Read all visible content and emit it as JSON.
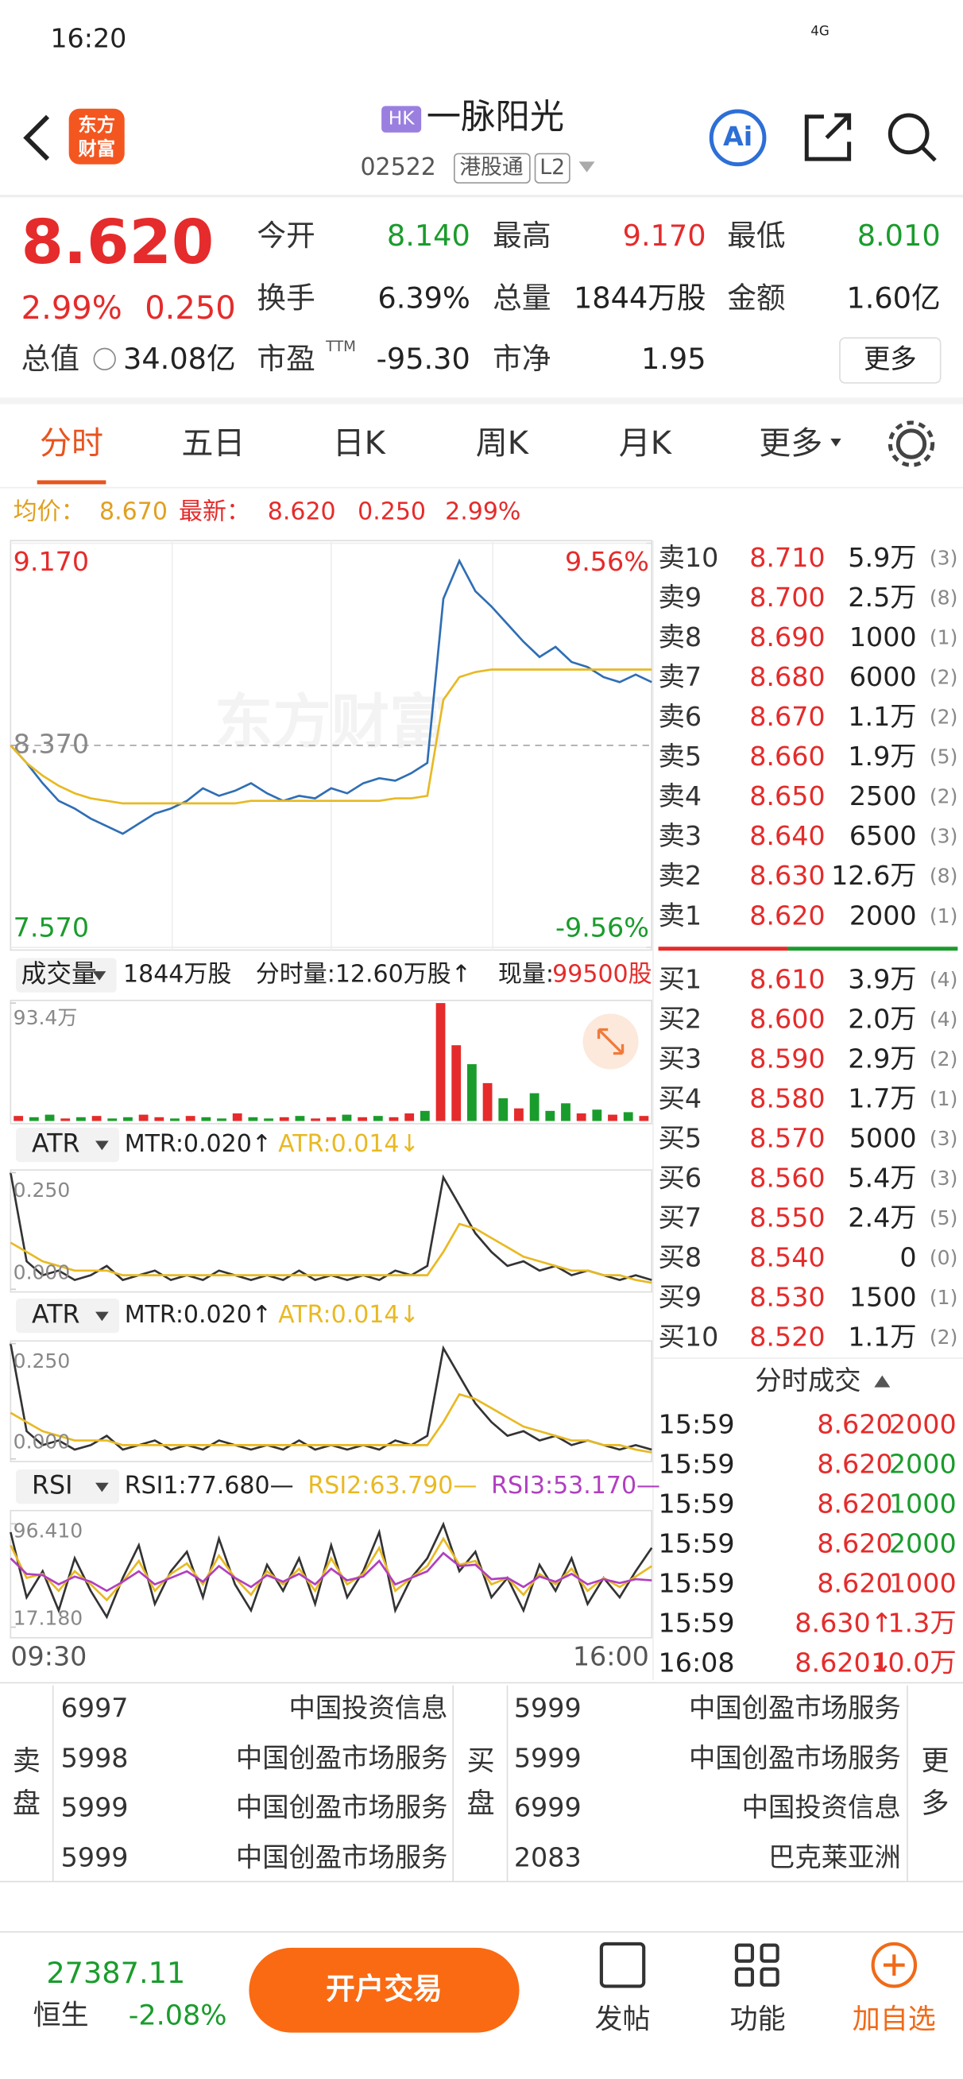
{
  "status_bar": {
    "time": "16:20",
    "network": "4G"
  },
  "header": {
    "logo": [
      "东方",
      "财富"
    ],
    "market": "HK",
    "name": "一脉阳光",
    "code": "02522",
    "tags": [
      "港股通",
      "L2"
    ],
    "ai_button": "Ai"
  },
  "quote": {
    "price": "8.620",
    "change_percent": "2.99%",
    "change": "0.250",
    "color": "#e52b2b",
    "fields": [
      {
        "label": "今开",
        "value": "8.140",
        "color": "#1a9c2c"
      },
      {
        "label": "最高",
        "value": "9.170",
        "color": "#e52b2b"
      },
      {
        "label": "最低",
        "value": "8.010",
        "color": "#1a9c2c"
      },
      {
        "label": "换手",
        "value": "6.39%"
      },
      {
        "label": "总量",
        "value": "1844万股"
      },
      {
        "label": "金额",
        "value": "1.60亿"
      },
      {
        "label": "总值",
        "value": "34.08亿"
      },
      {
        "label": "市盈",
        "superscript": "TTM",
        "value": "-95.30"
      },
      {
        "label": "市净",
        "value": "1.95"
      }
    ],
    "more_button": "更多"
  },
  "tabs": {
    "items": [
      "分时",
      "五日",
      "日K",
      "周K",
      "月K",
      "更多"
    ],
    "active": 0
  },
  "price_info": {
    "avg_label": "均价：",
    "avg": "8.670",
    "latest_label": "最新：",
    "latest": "8.620",
    "change": "0.250",
    "change_percent": "2.99%"
  },
  "intraday_chart": {
    "type": "line",
    "watermark": "东方财富",
    "ylim": [
      7.57,
      9.17
    ],
    "yticks": [
      {
        "value": 9.17,
        "label": "9.170"
      },
      {
        "value": 8.37,
        "label": "8.370"
      },
      {
        "value": 7.57,
        "label": "7.570"
      }
    ],
    "y2lim": [
      -9.56,
      9.56
    ],
    "y2ticks": [
      {
        "value": 9.56,
        "label": "9.56%"
      },
      {
        "value": -9.56,
        "label": "-9.56%"
      }
    ],
    "series": [
      {
        "color": "#2f6eb5",
        "values": [
          8.37,
          8.3,
          8.22,
          8.15,
          8.12,
          8.08,
          8.05,
          8.02,
          8.06,
          8.1,
          8.12,
          8.15,
          8.2,
          8.17,
          8.19,
          8.22,
          8.18,
          8.15,
          8.17,
          8.16,
          8.2,
          8.18,
          8.22,
          8.24,
          8.23,
          8.26,
          8.3,
          8.95,
          9.1,
          8.98,
          8.92,
          8.85,
          8.78,
          8.72,
          8.76,
          8.7,
          8.68,
          8.64,
          8.62,
          8.65,
          8.62
        ]
      },
      {
        "color": "#e8b923",
        "values": [
          8.37,
          8.3,
          8.25,
          8.21,
          8.18,
          8.16,
          8.15,
          8.14,
          8.14,
          8.14,
          8.14,
          8.14,
          8.14,
          8.14,
          8.14,
          8.15,
          8.15,
          8.15,
          8.15,
          8.15,
          8.15,
          8.15,
          8.15,
          8.15,
          8.16,
          8.16,
          8.17,
          8.55,
          8.64,
          8.66,
          8.67,
          8.67,
          8.67,
          8.67,
          8.67,
          8.67,
          8.67,
          8.67,
          8.67,
          8.67,
          8.67
        ]
      }
    ]
  },
  "volume_chart": {
    "type": "bar",
    "indicator": "成交量",
    "total": "1844万股",
    "period_volume": "分时量:12.60万股↑",
    "current_label": "现量:",
    "current": "99500股",
    "ylim": [
      0,
      93.4
    ],
    "yticks": [
      {
        "value": 93.4,
        "label": "93.4万"
      }
    ],
    "values": [
      4,
      3,
      5,
      2,
      3,
      4,
      2,
      3,
      5,
      3,
      2,
      4,
      3,
      2,
      6,
      3,
      2,
      3,
      4,
      2,
      3,
      5,
      3,
      4,
      3,
      6,
      8,
      93.4,
      60,
      45,
      30,
      18,
      10,
      22,
      8,
      14,
      6,
      9,
      5,
      7,
      4
    ],
    "colors": [
      "#e52b2b",
      "#1a9c2c",
      "#1a9c2c",
      "#e52b2b",
      "#1a9c2c",
      "#e52b2b",
      "#1a9c2c",
      "#1a9c2c",
      "#e52b2b",
      "#e52b2b",
      "#1a9c2c",
      "#e52b2b",
      "#1a9c2c",
      "#1a9c2c",
      "#e52b2b",
      "#1a9c2c",
      "#1a9c2c",
      "#e52b2b",
      "#1a9c2c",
      "#e52b2b",
      "#e52b2b",
      "#1a9c2c",
      "#e52b2b",
      "#1a9c2c",
      "#e52b2b",
      "#e52b2b",
      "#1a9c2c",
      "#e52b2b",
      "#e52b2b",
      "#1a9c2c",
      "#e52b2b",
      "#1a9c2c",
      "#e52b2b",
      "#1a9c2c",
      "#1a9c2c",
      "#1a9c2c",
      "#e52b2b",
      "#1a9c2c",
      "#e52b2b",
      "#1a9c2c",
      "#e52b2b"
    ]
  },
  "atr_charts": [
    {
      "type": "line",
      "indicator": "ATR",
      "ylim": [
        0,
        0.25
      ],
      "yticks": [
        {
          "value": 0.25,
          "label": "0.250"
        },
        {
          "value": 0,
          "label": "0.000"
        }
      ],
      "series": [
        {
          "name": "MTR:0.020↑",
          "color": "#333333",
          "values": [
            0.25,
            0.06,
            0.03,
            0.04,
            0.02,
            0.03,
            0.05,
            0.02,
            0.03,
            0.04,
            0.02,
            0.03,
            0.02,
            0.04,
            0.03,
            0.02,
            0.03,
            0.02,
            0.04,
            0.02,
            0.03,
            0.02,
            0.03,
            0.02,
            0.04,
            0.03,
            0.05,
            0.24,
            0.18,
            0.12,
            0.08,
            0.05,
            0.06,
            0.04,
            0.05,
            0.03,
            0.04,
            0.03,
            0.02,
            0.03,
            0.02
          ]
        },
        {
          "name": "ATR:0.014↓",
          "color": "#e8b923",
          "values": [
            0.1,
            0.08,
            0.06,
            0.05,
            0.04,
            0.04,
            0.04,
            0.03,
            0.03,
            0.03,
            0.03,
            0.03,
            0.03,
            0.03,
            0.03,
            0.03,
            0.03,
            0.03,
            0.03,
            0.03,
            0.03,
            0.03,
            0.03,
            0.03,
            0.03,
            0.03,
            0.03,
            0.08,
            0.14,
            0.13,
            0.11,
            0.09,
            0.07,
            0.06,
            0.05,
            0.04,
            0.04,
            0.03,
            0.03,
            0.02,
            0.014
          ]
        }
      ]
    },
    {
      "type": "line",
      "indicator": "ATR",
      "ylim": [
        0,
        0.25
      ],
      "yticks": [
        {
          "value": 0.25,
          "label": "0.250"
        },
        {
          "value": 0,
          "label": "0.000"
        }
      ],
      "series": [
        {
          "name": "MTR:0.020↑",
          "color": "#333333",
          "values": [
            0.25,
            0.06,
            0.03,
            0.04,
            0.02,
            0.03,
            0.05,
            0.02,
            0.03,
            0.04,
            0.02,
            0.03,
            0.02,
            0.04,
            0.03,
            0.02,
            0.03,
            0.02,
            0.04,
            0.02,
            0.03,
            0.02,
            0.03,
            0.02,
            0.04,
            0.03,
            0.05,
            0.24,
            0.18,
            0.12,
            0.08,
            0.05,
            0.06,
            0.04,
            0.05,
            0.03,
            0.04,
            0.03,
            0.02,
            0.03,
            0.02
          ]
        },
        {
          "name": "ATR:0.014↓",
          "color": "#e8b923",
          "values": [
            0.1,
            0.08,
            0.06,
            0.05,
            0.04,
            0.04,
            0.04,
            0.03,
            0.03,
            0.03,
            0.03,
            0.03,
            0.03,
            0.03,
            0.03,
            0.03,
            0.03,
            0.03,
            0.03,
            0.03,
            0.03,
            0.03,
            0.03,
            0.03,
            0.03,
            0.03,
            0.03,
            0.08,
            0.14,
            0.13,
            0.11,
            0.09,
            0.07,
            0.06,
            0.05,
            0.04,
            0.04,
            0.03,
            0.03,
            0.02,
            0.014
          ]
        }
      ]
    }
  ],
  "rsi_chart": {
    "type": "line",
    "indicator": "RSI",
    "ylim": [
      17.18,
      96.41
    ],
    "yticks": [
      {
        "value": 96.41,
        "label": "96.410"
      },
      {
        "value": 17.18,
        "label": "17.180"
      }
    ],
    "series": [
      {
        "name": "RSI1:77.680—",
        "color": "#333333",
        "values": [
          90,
          40,
          60,
          30,
          70,
          45,
          25,
          55,
          80,
          35,
          60,
          75,
          40,
          85,
          50,
          30,
          65,
          45,
          70,
          35,
          80,
          40,
          60,
          90,
          30,
          55,
          70,
          96,
          60,
          75,
          40,
          55,
          30,
          65,
          45,
          70,
          35,
          55,
          40,
          60,
          78
        ]
      },
      {
        "name": "RSI2:63.790—",
        "color": "#e8b923",
        "values": [
          80,
          55,
          58,
          45,
          60,
          50,
          38,
          52,
          68,
          45,
          58,
          66,
          50,
          72,
          55,
          42,
          60,
          50,
          62,
          45,
          70,
          50,
          58,
          78,
          45,
          55,
          64,
          85,
          65,
          68,
          50,
          55,
          42,
          58,
          50,
          62,
          45,
          55,
          48,
          56,
          64
        ]
      },
      {
        "name": "RSI3:53.170—",
        "color": "#b03fbf",
        "values": [
          70,
          58,
          57,
          50,
          56,
          52,
          45,
          52,
          60,
          50,
          55,
          60,
          52,
          64,
          55,
          48,
          57,
          52,
          58,
          50,
          62,
          53,
          56,
          68,
          50,
          55,
          60,
          74,
          64,
          65,
          54,
          55,
          48,
          56,
          52,
          58,
          50,
          54,
          51,
          54,
          53
        ]
      }
    ],
    "x_labels": [
      "09:30",
      "16:00"
    ]
  },
  "order_book": {
    "sell": [
      {
        "label": "卖10",
        "price": "8.710",
        "volume": "5.9万",
        "count": "(3)"
      },
      {
        "label": "卖9",
        "price": "8.700",
        "volume": "2.5万",
        "count": "(8)"
      },
      {
        "label": "卖8",
        "price": "8.690",
        "volume": "1000",
        "count": "(1)"
      },
      {
        "label": "卖7",
        "price": "8.680",
        "volume": "6000",
        "count": "(2)"
      },
      {
        "label": "卖6",
        "price": "8.670",
        "volume": "1.1万",
        "count": "(2)"
      },
      {
        "label": "卖5",
        "price": "8.660",
        "volume": "1.9万",
        "count": "(5)"
      },
      {
        "label": "卖4",
        "price": "8.650",
        "volume": "2500",
        "count": "(2)"
      },
      {
        "label": "卖3",
        "price": "8.640",
        "volume": "6500",
        "count": "(3)"
      },
      {
        "label": "卖2",
        "price": "8.630",
        "volume": "12.6万",
        "count": "(8)"
      },
      {
        "label": "卖1",
        "price": "8.620",
        "volume": "2000",
        "count": "(1)"
      }
    ],
    "buy": [
      {
        "label": "买1",
        "price": "8.610",
        "volume": "3.9万",
        "count": "(4)"
      },
      {
        "label": "买2",
        "price": "8.600",
        "volume": "2.0万",
        "count": "(4)"
      },
      {
        "label": "买3",
        "price": "8.590",
        "volume": "2.9万",
        "count": "(2)"
      },
      {
        "label": "买4",
        "price": "8.580",
        "volume": "1.7万",
        "count": "(1)"
      },
      {
        "label": "买5",
        "price": "8.570",
        "volume": "5000",
        "count": "(3)"
      },
      {
        "label": "买6",
        "price": "8.560",
        "volume": "5.4万",
        "count": "(3)"
      },
      {
        "label": "买7",
        "price": "8.550",
        "volume": "2.4万",
        "count": "(5)"
      },
      {
        "label": "买8",
        "price": "8.540",
        "volume": "0",
        "count": "(0)"
      },
      {
        "label": "买9",
        "price": "8.530",
        "volume": "1500",
        "count": "(1)"
      },
      {
        "label": "买10",
        "price": "8.520",
        "volume": "1.1万",
        "count": "(2)"
      }
    ]
  },
  "trades": {
    "title": "分时成交",
    "rows": [
      {
        "time": "15:59",
        "price": "8.620",
        "volume": "2000",
        "color": "#e52b2b"
      },
      {
        "time": "15:59",
        "price": "8.620",
        "volume": "2000",
        "color": "#1a9c2c"
      },
      {
        "time": "15:59",
        "price": "8.620",
        "volume": "1000",
        "color": "#1a9c2c"
      },
      {
        "time": "15:59",
        "price": "8.620",
        "volume": "2000",
        "color": "#1a9c2c"
      },
      {
        "time": "15:59",
        "price": "8.620",
        "volume": "1000",
        "color": "#e52b2b"
      },
      {
        "time": "15:59",
        "price": "8.630↑",
        "volume": "1.3万",
        "color": "#e52b2b"
      },
      {
        "time": "16:08",
        "price": "8.620↓",
        "volume": "10.0万",
        "color": "#e52b2b"
      }
    ]
  },
  "broker_queue": {
    "sell_label": [
      "卖",
      "盘"
    ],
    "sell": [
      [
        "6997",
        "中国投资信息"
      ],
      [
        "5998",
        "中国创盈市场服务"
      ],
      [
        "5999",
        "中国创盈市场服务"
      ],
      [
        "5999",
        "中国创盈市场服务"
      ]
    ],
    "buy_label": [
      "买",
      "盘"
    ],
    "buy": [
      [
        "5999",
        "中国创盈市场服务"
      ],
      [
        "5999",
        "中国创盈市场服务"
      ],
      [
        "6999",
        "中国投资信息"
      ],
      [
        "2083",
        "巴克莱亚洲"
      ]
    ],
    "more": [
      "更",
      "多"
    ]
  },
  "bottom_bar": {
    "index_value": "27387.11",
    "index_name": "恒生",
    "index_change": "-2.08%",
    "trade_button": "开户交易",
    "actions": [
      "发帖",
      "功能",
      "加自选"
    ]
  }
}
